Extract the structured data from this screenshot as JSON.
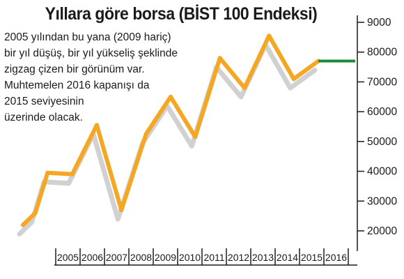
{
  "chart_data": {
    "type": "line",
    "title": "Yıllara göre borsa (BİST 100 Endeksi)",
    "annotation_lines": [
      "2005 yılından bu yana (2009 hariç)",
      "bir yıl düşüş, bir yıl yükseliş şeklinde",
      "zigzag çizen bir görünüm var.",
      "Muhtemelen 2016 kapanışı da",
      "2015 seviyesinin",
      "üzerinde olacak."
    ],
    "xlabel": "",
    "ylabel": "",
    "x_tick_labels": [
      "2005",
      "2006",
      "2007",
      "2008",
      "2009",
      "2010",
      "2011",
      "2012",
      "2013",
      "2014",
      "2015",
      "2016"
    ],
    "y_tick_labels": [
      "9000",
      "80000",
      "70000",
      "60000",
      "50000",
      "40000",
      "30000",
      "20000"
    ],
    "ylim": [
      15000,
      92000
    ],
    "series": [
      {
        "color": "#f5a623",
        "points": [
          {
            "x": 2004.0,
            "y": 22000
          },
          {
            "x": 2004.5,
            "y": 26000
          },
          {
            "x": 2005.0,
            "y": 39500
          },
          {
            "x": 2006.0,
            "y": 39000
          },
          {
            "x": 2007.0,
            "y": 55500
          },
          {
            "x": 2008.0,
            "y": 27000
          },
          {
            "x": 2009.0,
            "y": 52500
          },
          {
            "x": 2010.0,
            "y": 65000
          },
          {
            "x": 2011.0,
            "y": 51500
          },
          {
            "x": 2012.0,
            "y": 78000
          },
          {
            "x": 2013.0,
            "y": 68000
          },
          {
            "x": 2014.0,
            "y": 85500
          },
          {
            "x": 2015.0,
            "y": 71000
          },
          {
            "x": 2016.0,
            "y": 77000
          }
        ]
      }
    ],
    "projection": {
      "color": "#1a8a3a",
      "from_x": 2016.0,
      "to_x": 2018.0,
      "y": 77000
    },
    "grid": false,
    "shadow": true
  }
}
